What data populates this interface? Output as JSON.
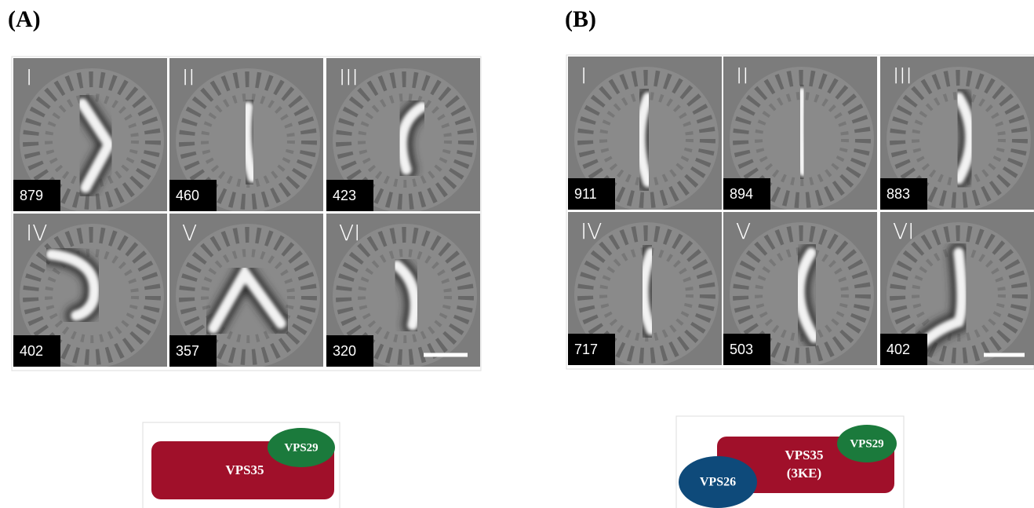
{
  "panels": [
    {
      "label": "(A)",
      "classes": [
        {
          "roman": "I",
          "count": 879
        },
        {
          "roman": "II",
          "count": 460
        },
        {
          "roman": "III",
          "count": 423
        },
        {
          "roman": "IV",
          "count": 402
        },
        {
          "roman": "V",
          "count": 357
        },
        {
          "roman": "VI",
          "count": 320
        }
      ],
      "schematic": {
        "vps35": "VPS35",
        "vps29": "VPS29"
      }
    },
    {
      "label": "(B)",
      "classes": [
        {
          "roman": "I",
          "count": 911
        },
        {
          "roman": "II",
          "count": 894
        },
        {
          "roman": "III",
          "count": 883
        },
        {
          "roman": "IV",
          "count": 717
        },
        {
          "roman": "V",
          "count": 503
        },
        {
          "roman": "VI",
          "count": 402
        }
      ],
      "schematic": {
        "vps35": "VPS35",
        "mutation": "(3KE)",
        "vps29": "VPS29",
        "vps26": "VPS26"
      }
    }
  ]
}
